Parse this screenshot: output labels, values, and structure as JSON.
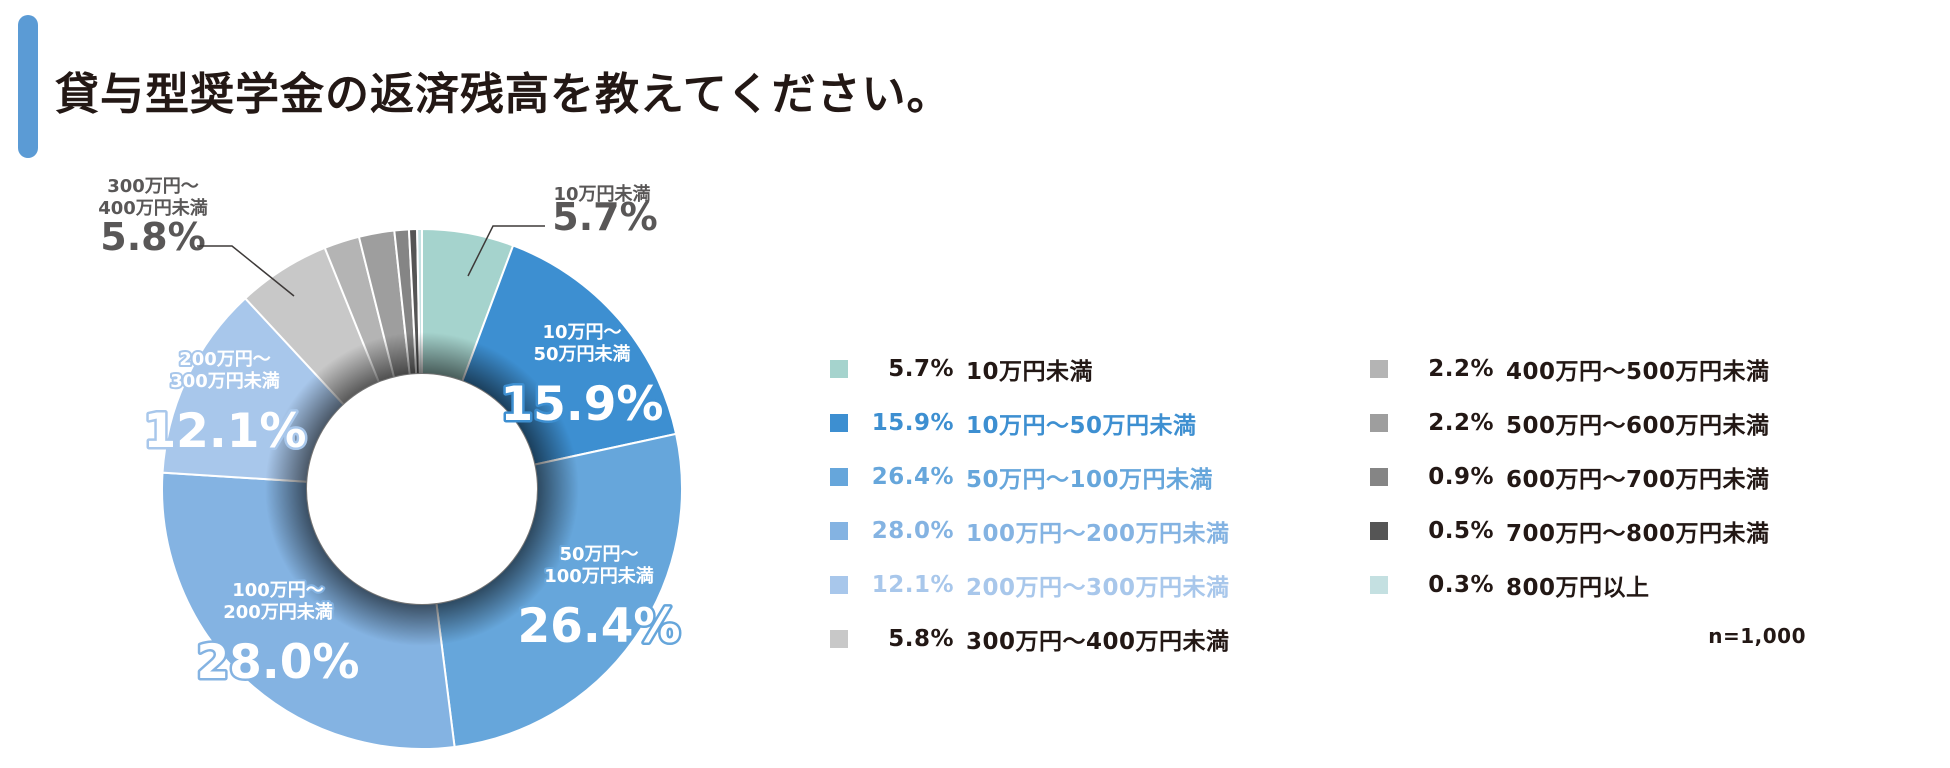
{
  "title": "貸与型奨学金の返済残高を教えてください。",
  "sample_size": "n=1,000",
  "chart_data": {
    "type": "pie",
    "variant": "donut",
    "title": "貸与型奨学金の返済残高を教えてください。",
    "n": 1000,
    "unit": "%",
    "categories": [
      "10万円未満",
      "10万円～50万円未満",
      "50万円～100万円未満",
      "100万円～200万円未満",
      "200万円～300万円未満",
      "300万円～400万円未満",
      "400万円～500万円未満",
      "500万円～600万円未満",
      "600万円～700万円未満",
      "700万円～800万円未満",
      "800万円以上"
    ],
    "values": [
      5.7,
      15.9,
      26.4,
      28.0,
      12.1,
      5.8,
      2.2,
      2.2,
      0.9,
      0.5,
      0.3
    ],
    "value_labels": [
      "5.7%",
      "15.9%",
      "26.4%",
      "28.0%",
      "12.1%",
      "5.8%",
      "2.2%",
      "2.2%",
      "0.9%",
      "0.5%",
      "0.3%"
    ],
    "colors": [
      "#a5d3cd",
      "#3d8fd1",
      "#66a6db",
      "#84b3e2",
      "#a8c7eb",
      "#c8c8c8",
      "#b4b4b4",
      "#9e9e9e",
      "#858585",
      "#555555",
      "#c4e0e1"
    ],
    "legend_text_colors": [
      "#231815",
      "#3d8fd1",
      "#66a6db",
      "#84b3e2",
      "#a8c7eb",
      "#231815",
      "#231815",
      "#231815",
      "#231815",
      "#231815",
      "#231815"
    ],
    "slice_labels": [
      {
        "slice": 0,
        "lines": [
          "10万円未満"
        ],
        "percent": "5.7%",
        "placement": "outside"
      },
      {
        "slice": 1,
        "lines": [
          "10万円～",
          "50万円未満"
        ],
        "percent": "15.9%",
        "placement": "inside"
      },
      {
        "slice": 2,
        "lines": [
          "50万円～",
          "100万円未満"
        ],
        "percent": "26.4%",
        "placement": "inside"
      },
      {
        "slice": 3,
        "lines": [
          "100万円～",
          "200万円未満"
        ],
        "percent": "28.0%",
        "placement": "inside"
      },
      {
        "slice": 4,
        "lines": [
          "200万円～",
          "300万円未満"
        ],
        "percent": "12.1%",
        "placement": "inside"
      },
      {
        "slice": 5,
        "lines": [
          "300万円～",
          "400万円未満"
        ],
        "percent": "5.8%",
        "placement": "outside"
      }
    ],
    "legend_position": "right"
  }
}
